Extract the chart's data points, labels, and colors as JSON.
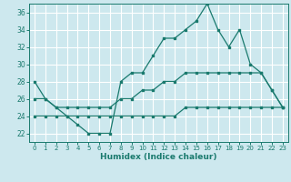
{
  "xlabel": "Humidex (Indice chaleur)",
  "background_color": "#cde8ee",
  "grid_color": "#ffffff",
  "line_color": "#1a7a6e",
  "xlim": [
    -0.5,
    23.5
  ],
  "ylim": [
    21.0,
    37.0
  ],
  "xticks": [
    0,
    1,
    2,
    3,
    4,
    5,
    6,
    7,
    8,
    9,
    10,
    11,
    12,
    13,
    14,
    15,
    16,
    17,
    18,
    19,
    20,
    21,
    22,
    23
  ],
  "yticks": [
    22,
    24,
    26,
    28,
    30,
    32,
    34,
    36
  ],
  "series1_y": [
    28,
    26,
    25,
    24,
    23,
    22,
    22,
    22,
    28,
    29,
    29,
    31,
    33,
    33,
    34,
    35,
    37,
    34,
    32,
    34,
    30,
    29,
    27,
    25
  ],
  "series2_y": [
    26,
    26,
    25,
    25,
    25,
    25,
    25,
    25,
    26,
    26,
    27,
    27,
    28,
    28,
    29,
    29,
    29,
    29,
    29,
    29,
    29,
    29,
    27,
    25
  ],
  "series3_y": [
    24,
    24,
    24,
    24,
    24,
    24,
    24,
    24,
    24,
    24,
    24,
    24,
    24,
    24,
    25,
    25,
    25,
    25,
    25,
    25,
    25,
    25,
    25,
    25
  ]
}
